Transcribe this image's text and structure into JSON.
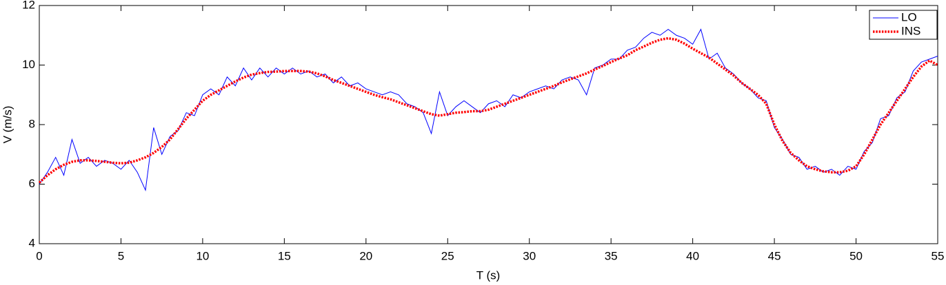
{
  "chart_data": {
    "type": "line",
    "xlabel": "T (s)",
    "ylabel": "V (m/s)",
    "xlim": [
      0,
      55
    ],
    "ylim": [
      4,
      12
    ],
    "xticks": [
      0,
      5,
      10,
      15,
      20,
      25,
      30,
      35,
      40,
      45,
      50,
      55
    ],
    "yticks": [
      4,
      6,
      8,
      10,
      12
    ],
    "grid": false,
    "legend": "upper right",
    "x": [
      0,
      0.5,
      1,
      1.5,
      2,
      2.5,
      3,
      3.5,
      4,
      4.5,
      5,
      5.5,
      6,
      6.5,
      7,
      7.5,
      8,
      8.5,
      9,
      9.5,
      10,
      10.5,
      11,
      11.5,
      12,
      12.5,
      13,
      13.5,
      14,
      14.5,
      15,
      15.5,
      16,
      16.5,
      17,
      17.5,
      18,
      18.5,
      19,
      19.5,
      20,
      20.5,
      21,
      21.5,
      22,
      22.5,
      23,
      23.5,
      24,
      24.5,
      25,
      25.5,
      26,
      26.5,
      27,
      27.5,
      28,
      28.5,
      29,
      29.5,
      30,
      30.5,
      31,
      31.5,
      32,
      32.5,
      33,
      33.5,
      34,
      34.5,
      35,
      35.5,
      36,
      36.5,
      37,
      37.5,
      38,
      38.5,
      39,
      39.5,
      40,
      40.5,
      41,
      41.5,
      42,
      42.5,
      43,
      43.5,
      44,
      44.5,
      45,
      45.5,
      46,
      46.5,
      47,
      47.5,
      48,
      48.5,
      49,
      49.5,
      50,
      50.5,
      51,
      51.5,
      52,
      52.5,
      53,
      53.5,
      54,
      54.5,
      55
    ],
    "series": [
      {
        "name": "LO",
        "color": "#0000ff",
        "style": "solid",
        "values": [
          6.0,
          6.4,
          6.9,
          6.3,
          7.5,
          6.7,
          6.9,
          6.6,
          6.8,
          6.7,
          6.5,
          6.8,
          6.4,
          5.8,
          7.9,
          7.0,
          7.6,
          7.8,
          8.4,
          8.3,
          9.0,
          9.2,
          9.0,
          9.6,
          9.3,
          9.9,
          9.5,
          9.9,
          9.6,
          9.9,
          9.7,
          9.9,
          9.7,
          9.8,
          9.6,
          9.7,
          9.4,
          9.6,
          9.3,
          9.4,
          9.2,
          9.1,
          9.0,
          9.1,
          9.0,
          8.7,
          8.6,
          8.4,
          7.7,
          9.1,
          8.3,
          8.6,
          8.8,
          8.6,
          8.4,
          8.7,
          8.8,
          8.6,
          9.0,
          8.9,
          9.1,
          9.2,
          9.3,
          9.2,
          9.5,
          9.6,
          9.5,
          9.0,
          9.9,
          10.0,
          10.2,
          10.2,
          10.5,
          10.6,
          10.9,
          11.1,
          11.0,
          11.2,
          11.0,
          10.9,
          10.7,
          11.2,
          10.2,
          10.4,
          9.9,
          9.7,
          9.4,
          9.2,
          8.9,
          8.8,
          7.9,
          7.5,
          7.0,
          6.9,
          6.5,
          6.6,
          6.4,
          6.5,
          6.3,
          6.6,
          6.5,
          7.1,
          7.4,
          8.2,
          8.3,
          8.9,
          9.1,
          9.8,
          10.1,
          10.2,
          10.3
        ]
      },
      {
        "name": "INS",
        "color": "#ff0000",
        "style": "dotted",
        "values": [
          6.05,
          6.3,
          6.5,
          6.65,
          6.75,
          6.8,
          6.8,
          6.78,
          6.75,
          6.72,
          6.7,
          6.72,
          6.8,
          6.9,
          7.05,
          7.25,
          7.5,
          7.85,
          8.2,
          8.5,
          8.8,
          9.0,
          9.15,
          9.3,
          9.45,
          9.58,
          9.68,
          9.73,
          9.77,
          9.78,
          9.8,
          9.8,
          9.8,
          9.78,
          9.72,
          9.62,
          9.5,
          9.4,
          9.3,
          9.2,
          9.1,
          9.0,
          8.92,
          8.85,
          8.75,
          8.65,
          8.55,
          8.45,
          8.35,
          8.3,
          8.35,
          8.4,
          8.42,
          8.45,
          8.45,
          8.5,
          8.6,
          8.7,
          8.8,
          8.9,
          9.0,
          9.1,
          9.2,
          9.3,
          9.42,
          9.52,
          9.62,
          9.72,
          9.85,
          9.97,
          10.1,
          10.22,
          10.33,
          10.5,
          10.62,
          10.75,
          10.85,
          10.9,
          10.85,
          10.72,
          10.55,
          10.4,
          10.25,
          10.05,
          9.85,
          9.65,
          9.4,
          9.2,
          9.0,
          8.7,
          8.0,
          7.45,
          7.05,
          6.8,
          6.6,
          6.5,
          6.43,
          6.4,
          6.4,
          6.45,
          6.6,
          7.0,
          7.5,
          8.0,
          8.4,
          8.8,
          9.2,
          9.6,
          9.95,
          10.15,
          10.0
        ]
      }
    ]
  }
}
